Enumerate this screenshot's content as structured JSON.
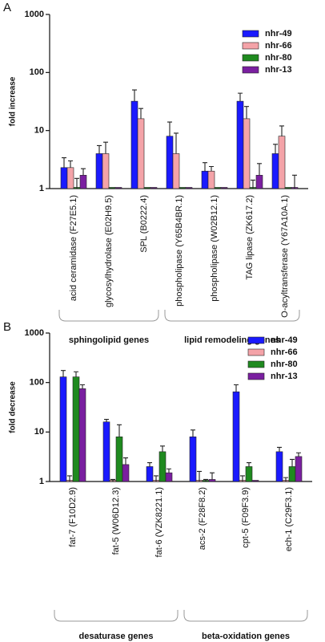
{
  "chart_data": [
    {
      "type": "bar",
      "panel": "A",
      "y_label": "fold increase",
      "log_scale": true,
      "ylim": [
        1,
        1000
      ],
      "yticks": [
        1,
        10,
        100,
        1000
      ],
      "legend": "top-right",
      "categories": [
        "acid ceramidase (F27E5.1)",
        "glycosylhydrolase (E02H9.5)",
        "SPL (B0222.4)",
        "phospholipase (Y65B4BR.1)",
        "phospholipase (W02B12.1)",
        "TAG lipase (ZK617.2)",
        "O-acyltransferase (Y67A10A.1)"
      ],
      "series": [
        {
          "name": "nhr-49",
          "color": "#1a1aff",
          "values": [
            2.3,
            4,
            32,
            8,
            2,
            32,
            4
          ],
          "errors": [
            1.1,
            1.5,
            18,
            6,
            0.8,
            12,
            1.8
          ]
        },
        {
          "name": "nhr-66",
          "color": "#f4a3a8",
          "values": [
            2.3,
            4,
            16,
            4,
            2,
            16,
            8
          ],
          "errors": [
            0.7,
            2.3,
            8,
            5,
            0.4,
            10,
            4
          ]
        },
        {
          "name": "nhr-80",
          "color": "#1f8a1f",
          "values": [
            1,
            1,
            1,
            1,
            1,
            1,
            1
          ],
          "errors": [
            0.5,
            0,
            0,
            0,
            0,
            0.4,
            0
          ]
        },
        {
          "name": "nhr-13",
          "color": "#7a1fa0",
          "values": [
            1.7,
            1,
            1,
            1,
            1,
            1.7,
            1
          ],
          "errors": [
            0.5,
            0,
            0,
            0,
            0,
            1,
            0.7
          ]
        }
      ],
      "groups": [
        {
          "label": "sphingolipid genes",
          "categories": [
            "acid ceramidase (F27E5.1)",
            "glycosylhydrolase (E02H9.5)",
            "SPL (B0222.4)"
          ]
        },
        {
          "label": "lipid remodeling genes",
          "categories": [
            "phospholipase (Y65B4BR.1)",
            "phospholipase (W02B12.1)",
            "TAG lipase (ZK617.2)",
            "O-acyltransferase (Y67A10A.1)"
          ]
        }
      ]
    },
    {
      "type": "bar",
      "panel": "B",
      "y_label": "fold decrease",
      "log_scale": true,
      "ylim": [
        1,
        1000
      ],
      "yticks": [
        1,
        10,
        100,
        1000
      ],
      "legend": "top-right",
      "categories": [
        "fat-7 (F10D2.9)",
        "fat-5 (W06D12.3)",
        "fat-6 (VZK8221.1)",
        "acs-2 (F28F8.2)",
        "cpt-5 (F09F3.9)",
        "ech-1 (C29F3.1)"
      ],
      "series": [
        {
          "name": "nhr-49",
          "color": "#1a1aff",
          "values": [
            130,
            16,
            2,
            8,
            65,
            4
          ],
          "errors": [
            45,
            2,
            0.4,
            3,
            25,
            0.9
          ]
        },
        {
          "name": "nhr-66",
          "color": "#f4a3a8",
          "values": [
            1,
            1,
            1,
            1,
            1,
            1
          ],
          "errors": [
            0.3,
            0.1,
            0.3,
            0.6,
            0.3,
            0.2
          ]
        },
        {
          "name": "nhr-80",
          "color": "#1f8a1f",
          "values": [
            130,
            8,
            4,
            1,
            2,
            2
          ],
          "errors": [
            35,
            6,
            1.2,
            0.1,
            0.4,
            0.8
          ]
        },
        {
          "name": "nhr-13",
          "color": "#7a1fa0",
          "values": [
            75,
            2.2,
            1.5,
            1.1,
            1,
            3.2
          ],
          "errors": [
            15,
            0.8,
            0.3,
            0.4,
            0,
            0.6
          ]
        }
      ],
      "groups": [
        {
          "label": "desaturase genes",
          "categories": [
            "fat-7 (F10D2.9)",
            "fat-5 (W06D12.3)",
            "fat-6 (VZK8221.1)"
          ]
        },
        {
          "label": "beta-oxidation genes",
          "categories": [
            "acs-2 (F28F8.2)",
            "cpt-5 (F09F3.9)",
            "ech-1 (C29F3.1)"
          ]
        }
      ]
    }
  ]
}
